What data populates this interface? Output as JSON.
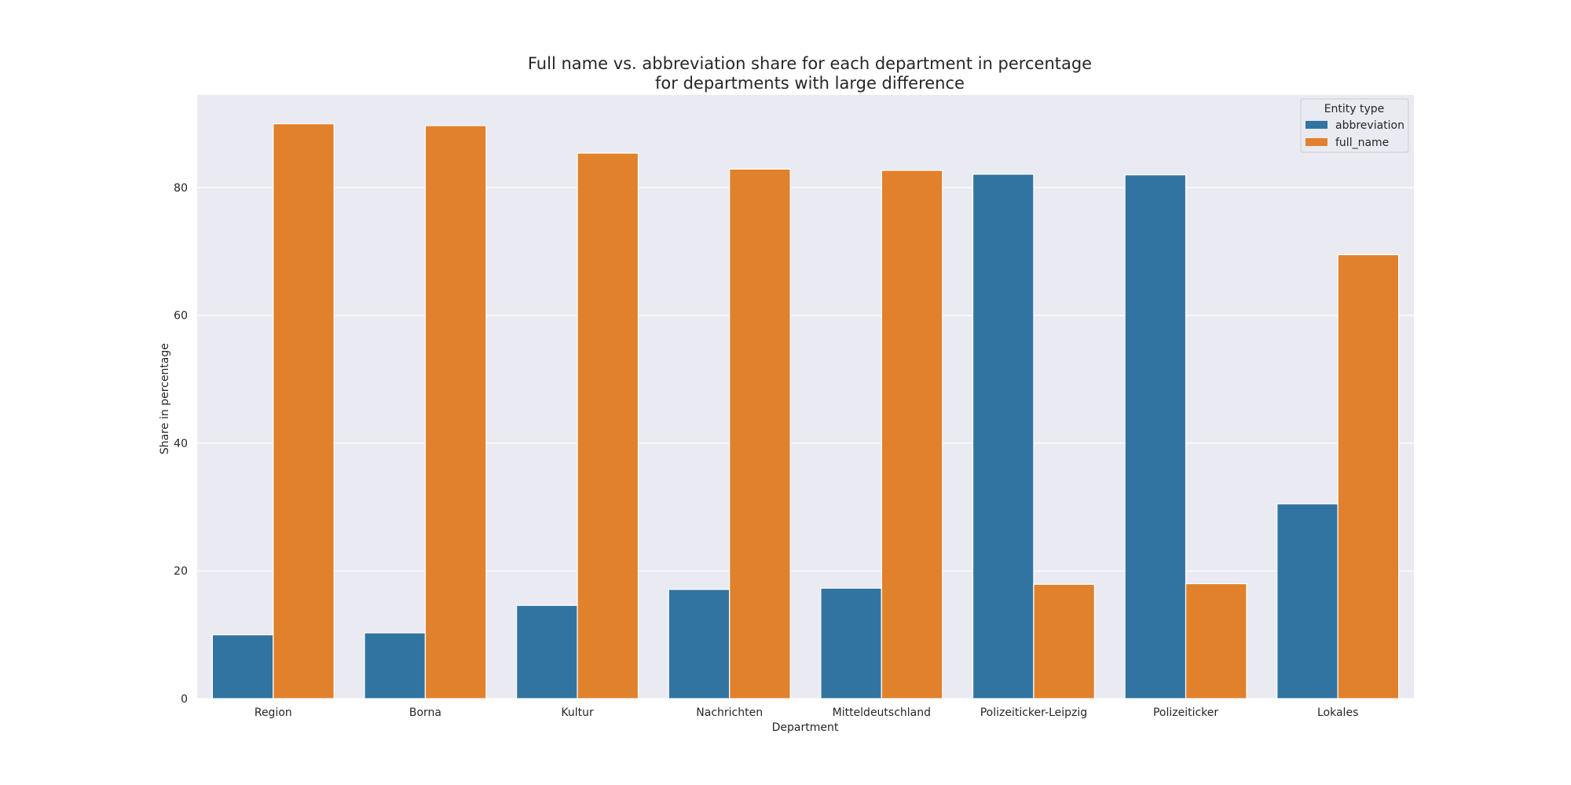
{
  "chart_data": {
    "type": "bar",
    "title": "Full name vs. abbreviation share for each department in percentage",
    "subtitle": "for departments with large difference",
    "xlabel": "Department",
    "ylabel": "Share in percentage",
    "categories": [
      "Region",
      "Borna",
      "Kultur",
      "Nachrichten",
      "Mitteldeutschland",
      "Polizeiticker-Leipzig",
      "Polizeiticker",
      "Lokales"
    ],
    "series": [
      {
        "name": "abbreviation",
        "color": "#3274a1",
        "values": [
          10.0,
          10.3,
          14.6,
          17.1,
          17.3,
          82.1,
          82.0,
          30.5
        ]
      },
      {
        "name": "full_name",
        "color": "#e1812c",
        "values": [
          90.0,
          89.7,
          85.4,
          82.9,
          82.7,
          17.9,
          18.0,
          69.5
        ]
      }
    ],
    "ylim": [
      0,
      94.5
    ],
    "yticks": [
      0,
      20,
      40,
      60,
      80
    ],
    "grid": true,
    "legend": {
      "title": "Entity type",
      "placement": "top-right"
    },
    "colors": {
      "plot_background": "#eaeaf2",
      "grid": "#ffffff"
    }
  }
}
